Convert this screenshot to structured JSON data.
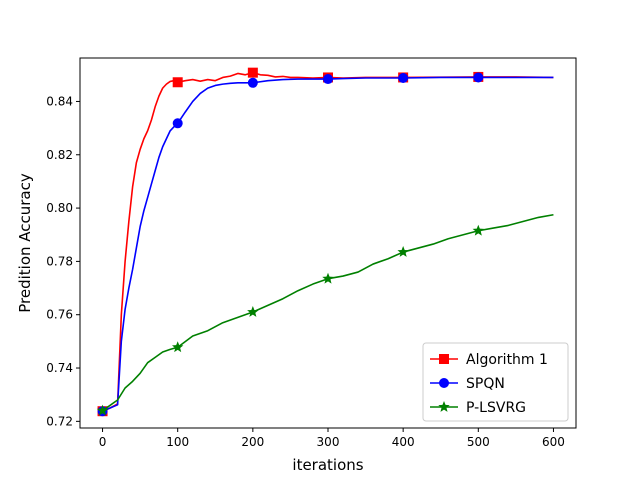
{
  "chart_data": {
    "type": "line",
    "title": "",
    "xlabel": "iterations",
    "ylabel": "Predition Accuracy",
    "xlim": [
      -30,
      630
    ],
    "ylim": [
      0.7175,
      0.8563
    ],
    "xticks": [
      0,
      100,
      200,
      300,
      400,
      500,
      600
    ],
    "yticks": [
      0.72,
      0.74,
      0.76,
      0.78,
      0.8,
      0.82,
      0.84
    ],
    "ytick_labels": [
      "0.72",
      "0.74",
      "0.76",
      "0.78",
      "0.80",
      "0.82",
      "0.84"
    ],
    "grid": false,
    "legend_position": "lower-right",
    "series": [
      {
        "name": "Algorithm 1",
        "color": "#ff0000",
        "marker": "square",
        "marker_x": [
          0,
          100,
          200,
          300,
          400,
          500
        ],
        "x": [
          0,
          10,
          20,
          25,
          30,
          35,
          40,
          45,
          50,
          55,
          60,
          65,
          70,
          75,
          80,
          85,
          90,
          95,
          100,
          110,
          120,
          130,
          140,
          150,
          160,
          170,
          180,
          190,
          200,
          210,
          220,
          230,
          240,
          250,
          260,
          280,
          300,
          320,
          350,
          400,
          450,
          500,
          550,
          600
        ],
        "y": [
          0.7238,
          0.725,
          0.7265,
          0.76,
          0.78,
          0.795,
          0.808,
          0.817,
          0.822,
          0.826,
          0.829,
          0.833,
          0.838,
          0.842,
          0.845,
          0.8465,
          0.8475,
          0.8478,
          0.8472,
          0.8478,
          0.8482,
          0.8476,
          0.8482,
          0.8478,
          0.849,
          0.8495,
          0.8505,
          0.85,
          0.8508,
          0.85,
          0.8498,
          0.8492,
          0.8494,
          0.849,
          0.849,
          0.8488,
          0.849,
          0.8488,
          0.849,
          0.849,
          0.8491,
          0.8492,
          0.8492,
          0.849
        ]
      },
      {
        "name": "SPQN",
        "color": "#0000ff",
        "marker": "circle",
        "marker_x": [
          0,
          100,
          200,
          300,
          400,
          500
        ],
        "x": [
          0,
          10,
          20,
          25,
          30,
          35,
          40,
          45,
          50,
          55,
          60,
          65,
          70,
          75,
          80,
          85,
          90,
          95,
          100,
          110,
          120,
          130,
          140,
          150,
          160,
          170,
          180,
          190,
          200,
          220,
          240,
          260,
          280,
          300,
          320,
          350,
          400,
          450,
          500,
          550,
          600
        ],
        "y": [
          0.7238,
          0.725,
          0.7262,
          0.75,
          0.762,
          0.77,
          0.777,
          0.785,
          0.793,
          0.799,
          0.804,
          0.809,
          0.814,
          0.819,
          0.823,
          0.826,
          0.829,
          0.8305,
          0.8318,
          0.836,
          0.84,
          0.843,
          0.845,
          0.846,
          0.8465,
          0.8468,
          0.847,
          0.847,
          0.847,
          0.8478,
          0.8482,
          0.8484,
          0.8484,
          0.8484,
          0.8486,
          0.8488,
          0.8488,
          0.849,
          0.849,
          0.849,
          0.849
        ]
      },
      {
        "name": "P-LSVRG",
        "color": "#008000",
        "marker": "star",
        "marker_x": [
          0,
          100,
          200,
          300,
          400,
          500
        ],
        "x": [
          0,
          20,
          30,
          40,
          50,
          60,
          70,
          80,
          90,
          100,
          120,
          140,
          160,
          180,
          200,
          220,
          240,
          260,
          280,
          300,
          320,
          340,
          360,
          380,
          400,
          420,
          440,
          460,
          480,
          500,
          520,
          540,
          560,
          580,
          600
        ],
        "y": [
          0.724,
          0.728,
          0.7325,
          0.735,
          0.738,
          0.742,
          0.744,
          0.746,
          0.747,
          0.7478,
          0.752,
          0.754,
          0.757,
          0.759,
          0.761,
          0.7635,
          0.766,
          0.769,
          0.7715,
          0.7735,
          0.7745,
          0.776,
          0.779,
          0.781,
          0.7835,
          0.785,
          0.7865,
          0.7885,
          0.79,
          0.7915,
          0.7925,
          0.7935,
          0.795,
          0.7965,
          0.7975
        ]
      }
    ]
  }
}
